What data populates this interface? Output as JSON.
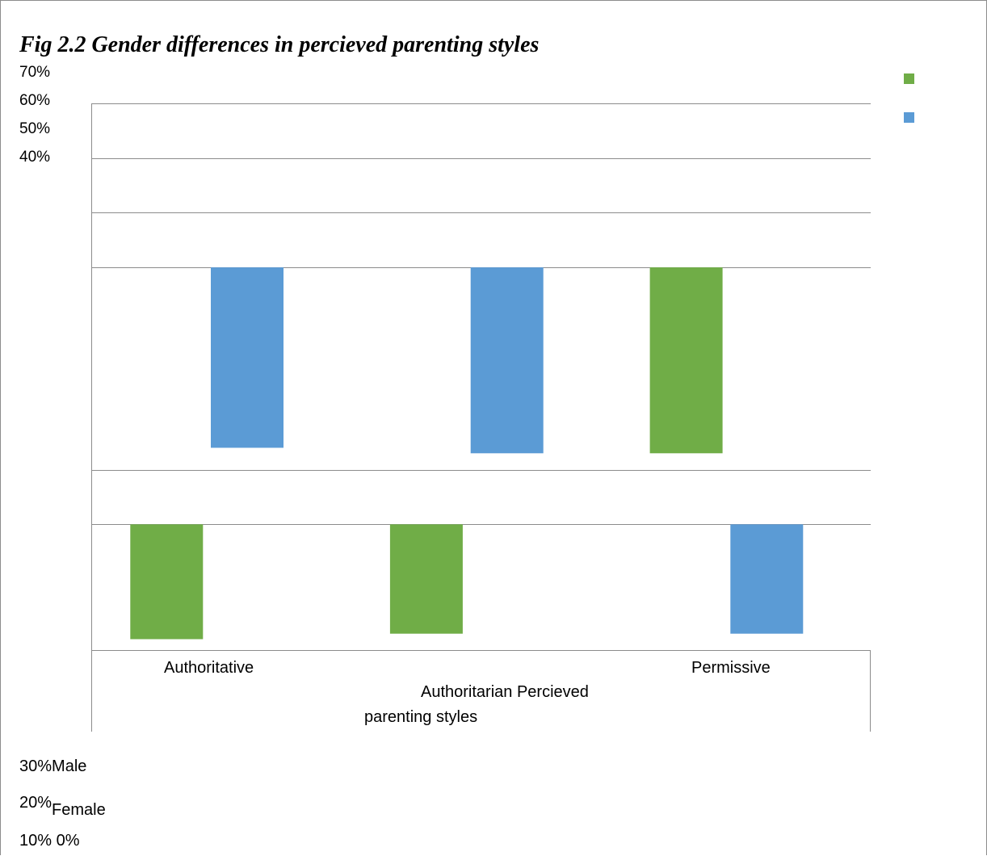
{
  "chart_data": {
    "type": "bar",
    "title": "Fig 2.2 Gender differences in percieved parenting styles",
    "categories": [
      "Authoritative",
      "Authoritarian",
      "Permissive"
    ],
    "xlabel_inline": "Authoritarian Percieved",
    "xlabel_line2": "parenting styles",
    "top_tick_labels": [
      "70%",
      "60%",
      "50%",
      "40%"
    ],
    "bottom_tick_text": {
      "t30": "30%",
      "male": "Male",
      "t20": "20%",
      "female": "Female",
      "t10_0": "10% 0%"
    },
    "series": [
      {
        "name": "Male",
        "color": "#70ad47",
        "segments": [
          [
            0.02,
            0.23
          ],
          [
            0.03,
            0.23
          ],
          [
            0.36,
            0.7
          ]
        ]
      },
      {
        "name": "Female",
        "color": "#5b9bd5",
        "segments": [
          [
            0.37,
            0.7
          ],
          [
            0.36,
            0.7
          ],
          [
            0.03,
            0.23
          ]
        ]
      }
    ],
    "ylim": [
      0,
      1
    ],
    "gridlines": [
      0,
      0.23,
      0.33,
      0.7,
      0.8,
      0.9,
      1.0
    ],
    "grid": true,
    "legend_position": "right"
  }
}
